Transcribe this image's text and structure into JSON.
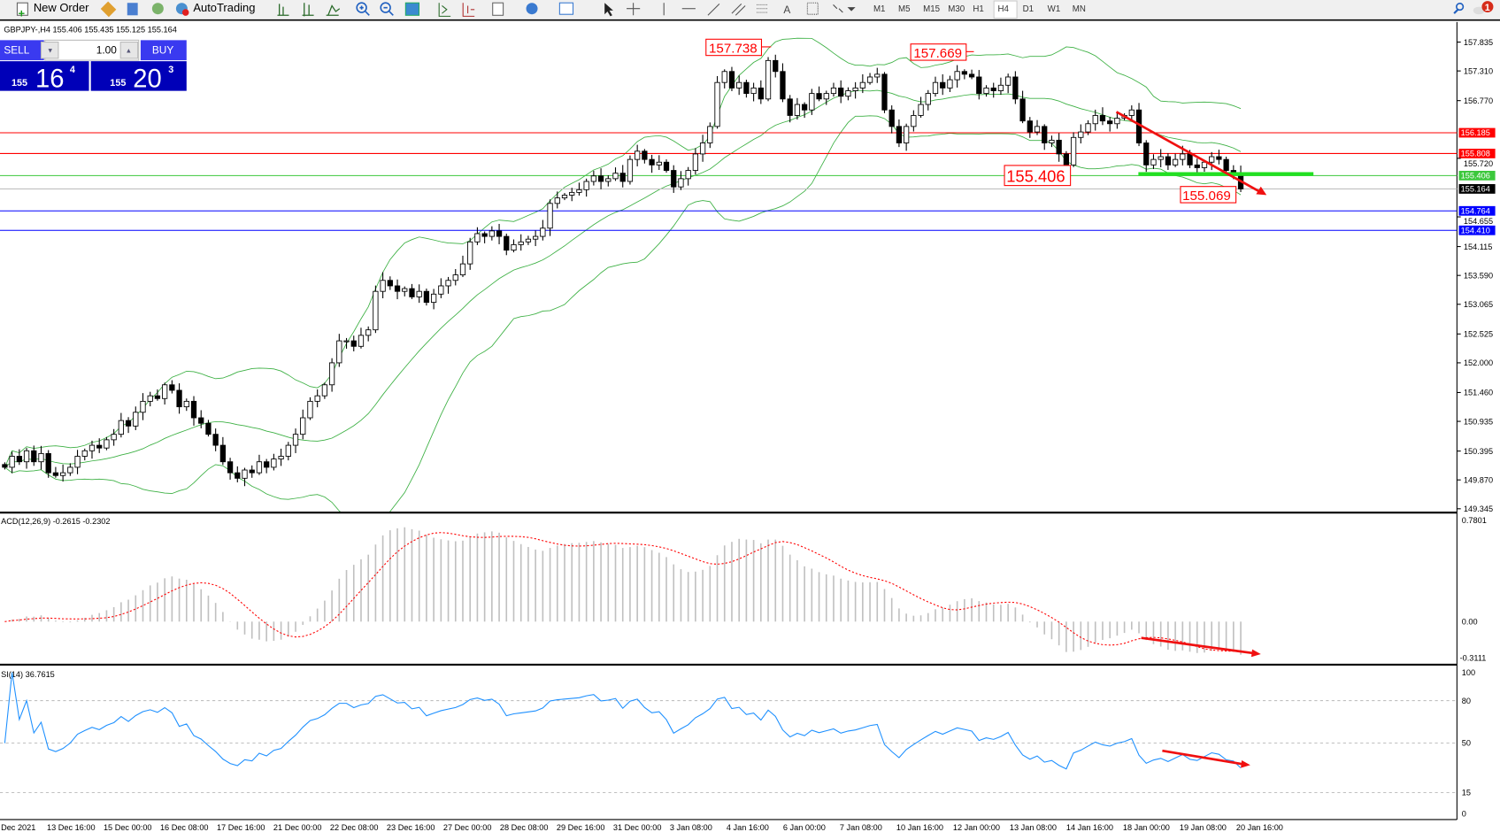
{
  "toolbar": {
    "new_order": "New Order",
    "autotrading": "AutoTrading",
    "timeframes": [
      "M1",
      "M5",
      "M15",
      "M30",
      "H1",
      "H4",
      "D1",
      "W1",
      "MN"
    ],
    "active_timeframe": "H4",
    "notification_count": "1"
  },
  "chart": {
    "info": "GBPJPY-,H4  155.406 155.435 155.125 155.164",
    "symbol": "GBPJPY-",
    "timeframe": "H4",
    "bull_color": "#ffffff",
    "bear_color": "#000000",
    "band_color": "#3cb043"
  },
  "trade_panel": {
    "sell_label": "SELL",
    "buy_label": "BUY",
    "lot": "1.00",
    "sell_big": "155",
    "sell_main": "16",
    "sell_frac": "4",
    "buy_big": "155",
    "buy_main": "20",
    "buy_frac": "3"
  },
  "price_axis": [
    "157.835",
    "157.310",
    "156.770",
    "155.720",
    "154.655",
    "154.115",
    "153.590",
    "153.065",
    "152.525",
    "152.000",
    "151.460",
    "150.935",
    "150.395",
    "149.870",
    "149.345"
  ],
  "levels": [
    {
      "price": "156.185",
      "color": "#ff0000"
    },
    {
      "price": "155.808",
      "color": "#ff0000"
    },
    {
      "price": "155.406",
      "color": "#3cc83c"
    },
    {
      "price": "155.164",
      "color": "#000000",
      "line": "#c0c0c0"
    },
    {
      "price": "154.764",
      "color": "#0000ff"
    },
    {
      "price": "154.410",
      "color": "#0000ff"
    }
  ],
  "annotations": {
    "high1": "157.738",
    "high2": "157.669",
    "support": "155.406",
    "low": "155.069"
  },
  "macd": {
    "label": "ACD(12,26,9) -0.2615 -0.2302",
    "axis": [
      "0.7801",
      "0.00",
      "-0.3111"
    ]
  },
  "rsi": {
    "label": "SI(14) 36.7615",
    "axis": [
      "100",
      "80",
      "50",
      "15",
      "0"
    ]
  },
  "time_axis": [
    "Dec 2021",
    "13 Dec 16:00",
    "15 Dec 00:00",
    "16 Dec 08:00",
    "17 Dec 16:00",
    "21 Dec 00:00",
    "22 Dec 08:00",
    "23 Dec 16:00",
    "27 Dec 00:00",
    "28 Dec 08:00",
    "29 Dec 16:00",
    "31 Dec 00:00",
    "3 Jan 08:00",
    "4 Jan 16:00",
    "6 Jan 00:00",
    "7 Jan 08:00",
    "10 Jan 16:00",
    "12 Jan 00:00",
    "13 Jan 08:00",
    "14 Jan 16:00",
    "18 Jan 00:00",
    "19 Jan 08:00",
    "20 Jan 16:00"
  ],
  "closes": [
    150.1,
    150.3,
    150.2,
    150.4,
    150.2,
    150.35,
    150.0,
    149.95,
    150.0,
    150.1,
    150.3,
    150.4,
    150.5,
    150.45,
    150.6,
    150.7,
    150.95,
    150.85,
    151.1,
    151.3,
    151.4,
    151.35,
    151.6,
    151.5,
    151.2,
    151.3,
    151.0,
    150.9,
    150.7,
    150.5,
    150.2,
    150.0,
    149.9,
    150.05,
    150.0,
    150.2,
    150.1,
    150.25,
    150.3,
    150.5,
    150.7,
    151.0,
    151.3,
    151.4,
    151.6,
    152.0,
    152.4,
    152.4,
    152.3,
    152.5,
    152.6,
    153.3,
    153.5,
    153.4,
    153.3,
    153.35,
    153.2,
    153.3,
    153.1,
    153.25,
    153.4,
    153.5,
    153.6,
    153.8,
    154.2,
    154.35,
    154.3,
    154.4,
    154.3,
    154.05,
    154.15,
    154.2,
    154.25,
    154.3,
    154.45,
    154.9,
    155.0,
    155.05,
    155.1,
    155.15,
    155.3,
    155.4,
    155.3,
    155.35,
    155.45,
    155.3,
    155.7,
    155.85,
    155.7,
    155.6,
    155.65,
    155.5,
    155.2,
    155.35,
    155.5,
    155.8,
    156.0,
    156.3,
    157.1,
    157.3,
    157.0,
    157.1,
    156.9,
    157.0,
    156.8,
    157.5,
    157.3,
    156.8,
    156.5,
    156.7,
    156.6,
    156.9,
    156.8,
    156.9,
    157.0,
    156.85,
    156.95,
    157.0,
    157.1,
    157.2,
    157.25,
    156.6,
    156.3,
    156.0,
    156.3,
    156.5,
    156.7,
    156.9,
    157.1,
    157.0,
    157.15,
    157.3,
    157.25,
    157.2,
    156.9,
    157.0,
    156.95,
    157.05,
    157.2,
    156.8,
    156.4,
    156.2,
    156.3,
    156.0,
    156.05,
    155.8,
    155.6,
    156.1,
    156.2,
    156.35,
    156.5,
    156.4,
    156.35,
    156.45,
    156.5,
    156.6,
    156.0,
    155.6,
    155.7,
    155.75,
    155.6,
    155.7,
    155.8,
    155.6,
    155.55,
    155.65,
    155.75,
    155.7,
    155.5,
    155.45,
    155.164
  ]
}
